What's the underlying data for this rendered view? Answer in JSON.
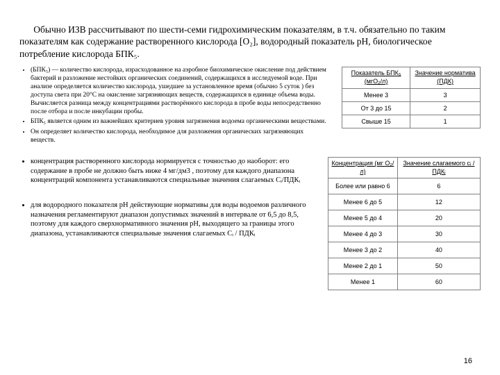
{
  "intro": "Обычно ИЗВ рассчитывают по шести-семи гидрохимическим показателям, в т.ч. обязательно по таким показателям как содержание растворенного кислорода [O₂], водородный показатель pH, биологическое потребление кислорода БПК₅.",
  "bullets1": [
    "(БПК₅) — количество кислорода, израсходованное на аэробное биохимическое окисление под действием бактерий и разложение нестойких органических соединений, содержащихся в исследуемой воде. При анализе определяется количество кислорода, ушедшее за установленное время (обычно 5 суток ) без доступа света при 20°C на окисление загрязняющих веществ, содержащихся в единице объема воды. Вычисляется разница между концентрациями растворённого кислорода в пробе воды непосредственно после отбора и после инкубации пробы.",
    "БПК₅ является одним из важнейших критериев уровня загрязнения водоема органическими веществами.",
    "Он определяет количество кислорода, необходимое для разложения органических загрязняющих веществ."
  ],
  "table1": {
    "headers": [
      "Показатель БПК₅ (мгО₂/л)",
      "Значение норматива (ПДК)"
    ],
    "rows": [
      [
        "Менее 3",
        "3"
      ],
      [
        "От 3 до 15",
        "2"
      ],
      [
        "Свыше 15",
        "1"
      ]
    ]
  },
  "bullets2": [
    "концентрация растворенного кислорода нормируется с точностью до наоборот: его содержание в пробе не должно быть ниже 4 мг/дм3 , поэтому для каждого диапазона концентраций компонента устанавливаются специальные значения слагаемых Cᵢ/ПДКᵢ",
    "для водородного показателя pH действующие нормативы для воды водоемов различного назначения регламентируют диапазон допустимых значений в интервале от 6,5 до 8,5, поэтому для каждого сверхнормативного значения pH, выходящего за границы этого диапазона, устанавливаются специальные значения слагаемых Cᵢ / ПДКᵢ"
  ],
  "table2": {
    "headers": [
      "Концентрация (мг О₂/л)",
      "Значение слагаемого cᵢ / ПДКᵢ"
    ],
    "rows": [
      [
        "Более или равно 6",
        "6"
      ],
      [
        "Менее 6 до 5",
        "12"
      ],
      [
        "Менее 5 до 4",
        "20"
      ],
      [
        "Менее 4 до 3",
        "30"
      ],
      [
        "Менее 3 до 2",
        "40"
      ],
      [
        "Менее 2 до 1",
        "50"
      ],
      [
        "Менее 1",
        "60"
      ]
    ]
  },
  "pagenum": "16"
}
